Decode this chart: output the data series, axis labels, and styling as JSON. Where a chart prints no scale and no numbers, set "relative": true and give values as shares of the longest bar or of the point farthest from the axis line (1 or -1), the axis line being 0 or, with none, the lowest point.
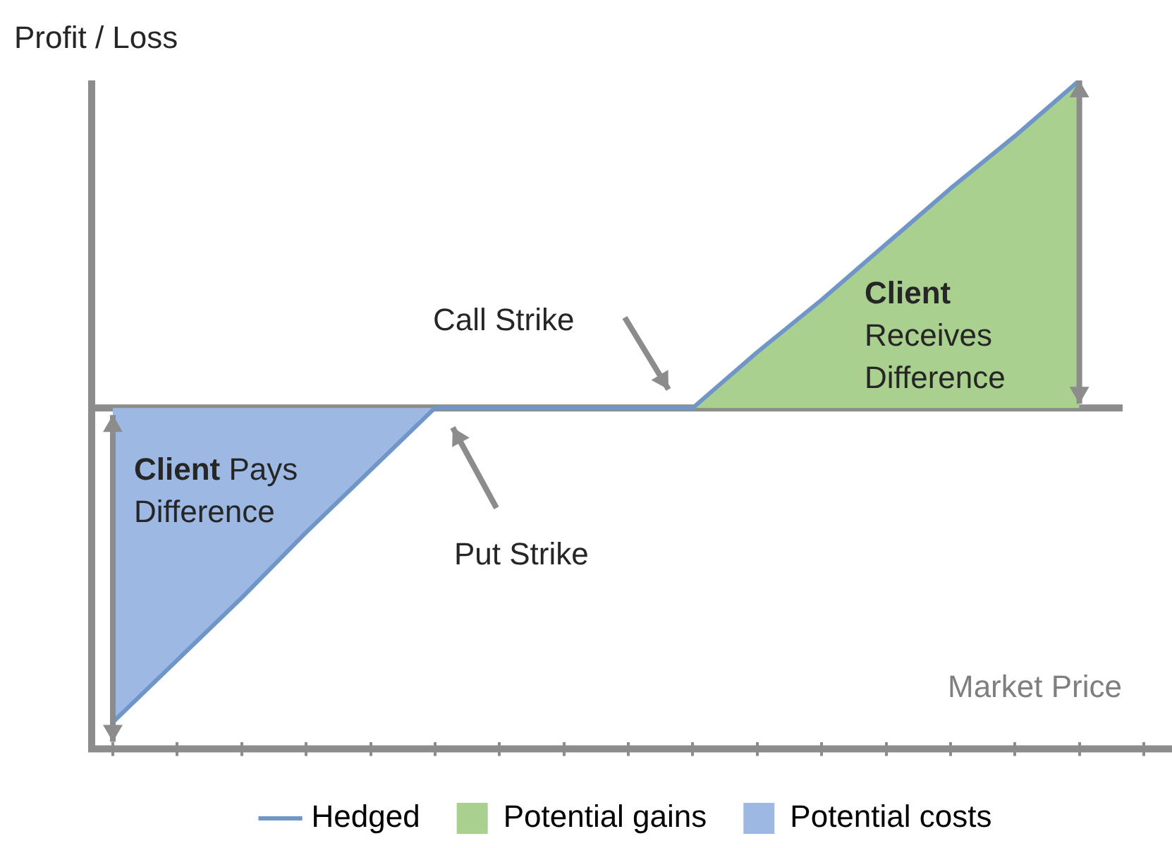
{
  "chart_data": {
    "type": "line",
    "relative": true,
    "ylabel": "Profit / Loss",
    "xlabel": "Market Price",
    "categories": [
      null,
      null,
      null,
      null,
      null,
      null,
      null,
      null,
      null,
      null,
      null,
      null,
      null,
      null,
      null,
      null,
      null
    ],
    "series": [
      {
        "name": "Hedged",
        "type": "line",
        "color": "#7096c8",
        "values": [
          -0.96,
          -0.77,
          -0.58,
          -0.38,
          -0.19,
          0,
          0,
          0,
          0,
          0,
          0.17,
          0.33,
          0.5,
          0.67,
          0.83,
          1,
          null
        ]
      },
      {
        "name": "Potential gains",
        "type": "area",
        "color": "#a9d08e",
        "values": [
          null,
          null,
          null,
          null,
          null,
          null,
          null,
          null,
          null,
          0,
          0.17,
          0.33,
          0.5,
          0.67,
          0.83,
          1,
          null
        ]
      },
      {
        "name": "Potential costs",
        "type": "area",
        "color": "#9db8e3",
        "values": [
          -0.96,
          -0.77,
          -0.58,
          -0.38,
          -0.19,
          0,
          null,
          null,
          null,
          null,
          null,
          null,
          null,
          null,
          null,
          null,
          null
        ]
      }
    ],
    "annotations": [
      "Call Strike",
      "Client Receives Difference",
      "Client Pays Difference",
      "Put Strike"
    ],
    "legend": "bottom",
    "marker": "none"
  }
}
